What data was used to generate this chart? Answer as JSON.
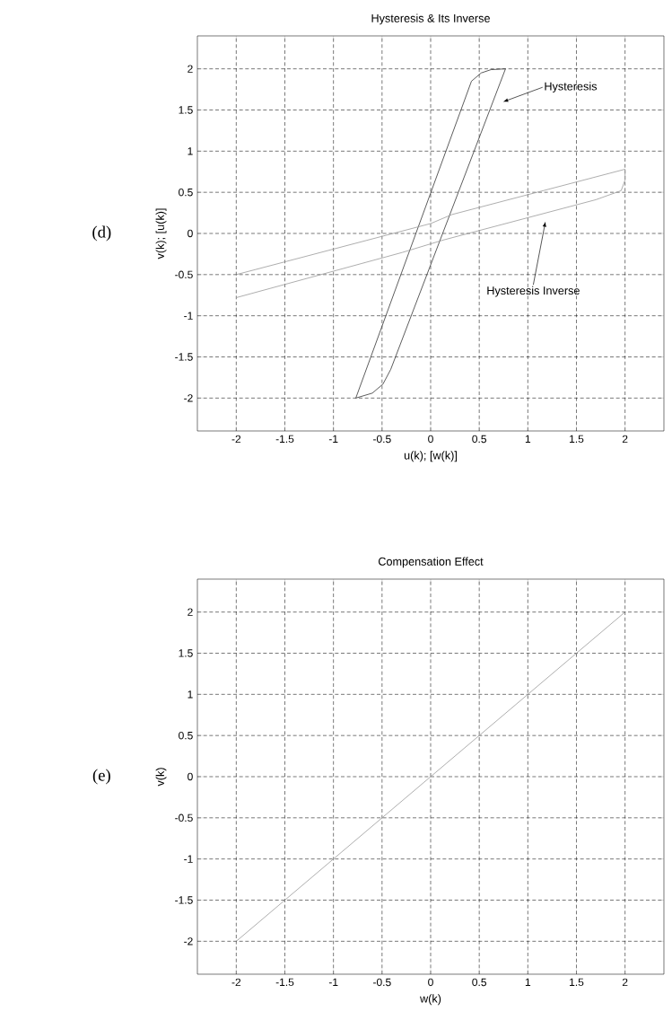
{
  "chart_data": [
    {
      "type": "line",
      "title": "Hysteresis & Its Inverse",
      "xlabel": "u(k); [w(k)]",
      "ylabel": "v(k); [u(k)]",
      "series": [
        {
          "color": "#333333",
          "x": [
            -0.77,
            0.42,
            0.52,
            0.62,
            0.77
          ],
          "values": [
            -2,
            1.85,
            1.95,
            1.99,
            2
          ]
        },
        {
          "color": "#333333",
          "x": [
            -0.77,
            -0.6,
            -0.49,
            -0.41,
            0.77
          ],
          "values": [
            -2,
            -1.94,
            -1.83,
            -1.65,
            2
          ]
        },
        {
          "color": "#999999",
          "x": [
            -2,
            0,
            0.22,
            2
          ],
          "values": [
            -0.5,
            0.12,
            0.23,
            0.78
          ]
        },
        {
          "color": "#999999",
          "x": [
            -2,
            -0.29,
            0.13,
            1.7,
            1.96,
            2,
            2
          ],
          "values": [
            -0.78,
            -0.23,
            -0.08,
            0.41,
            0.52,
            0.65,
            0.78
          ]
        }
      ],
      "xlim": [
        -2.4,
        2.4
      ],
      "ylim": [
        -2.4,
        2.4
      ],
      "xticks": [
        -2,
        -1.5,
        -1,
        -0.5,
        0,
        0.5,
        1,
        1.5,
        2
      ],
      "yticks": [
        -2,
        -1.5,
        -1,
        -0.5,
        0,
        0.5,
        1,
        1.5,
        2
      ],
      "grid": true,
      "marker": "none",
      "line_style": "solid",
      "annotations": [
        "Hysteresis",
        "Hysteresis Inverse",
        "(d)"
      ]
    },
    {
      "type": "line",
      "title": "Compensation Effect",
      "xlabel": "w(k)",
      "ylabel": "v(k)",
      "series": [
        {
          "color": "#999999",
          "x": [
            -2,
            2
          ],
          "values": [
            -2,
            2
          ]
        }
      ],
      "xlim": [
        -2.4,
        2.4
      ],
      "ylim": [
        -2.4,
        2.4
      ],
      "xticks": [
        -2,
        -1.5,
        -1,
        -0.5,
        0,
        0.5,
        1,
        1.5,
        2
      ],
      "yticks": [
        -2,
        -1.5,
        -1,
        -0.5,
        0,
        0.5,
        1,
        1.5,
        2
      ],
      "grid": true,
      "marker": "none",
      "line_style": "solid",
      "annotations": [
        "(e)"
      ]
    }
  ]
}
